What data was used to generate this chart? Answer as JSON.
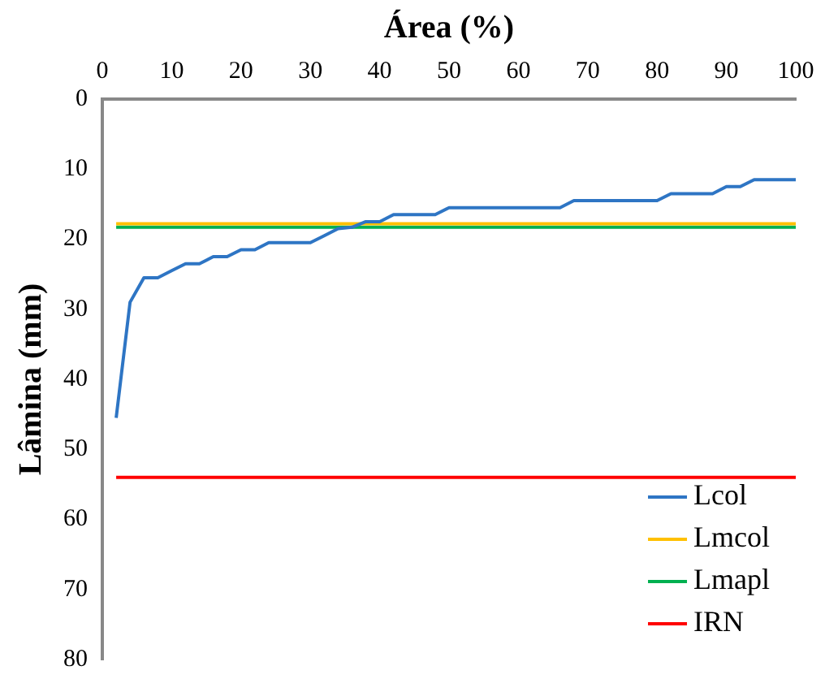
{
  "chart_data": {
    "type": "line",
    "xlabel": "Área (%)",
    "ylabel": "Lâmina (mm)",
    "xlim": [
      0,
      100
    ],
    "xticks": [
      0,
      10,
      20,
      30,
      40,
      50,
      60,
      70,
      80,
      90,
      100
    ],
    "ylim": [
      80,
      0
    ],
    "yticks": [
      0,
      10,
      20,
      30,
      40,
      50,
      60,
      70,
      80
    ],
    "grid": false,
    "legend": "bottom right",
    "marker": "none",
    "line_style": "solid",
    "series": [
      {
        "name": "Lcol",
        "color": "#2e75c4",
        "x": [
          2,
          4,
          6,
          8,
          10,
          12,
          14,
          16,
          18,
          20,
          22,
          24,
          26,
          28,
          30,
          32,
          34,
          36,
          38,
          40,
          42,
          44,
          46,
          48,
          50,
          52,
          66,
          68,
          80,
          82,
          88,
          90,
          92,
          94,
          100
        ],
        "values": [
          45.5,
          29,
          25.5,
          25.5,
          24.5,
          23.5,
          23.5,
          22.5,
          22.5,
          21.5,
          21.5,
          20.5,
          20.5,
          20.5,
          20.5,
          19.5,
          18.5,
          18.3,
          17.5,
          17.5,
          16.5,
          16.5,
          16.5,
          16.5,
          15.5,
          15.5,
          15.5,
          14.5,
          14.5,
          13.5,
          13.5,
          12.5,
          12.5,
          11.5,
          11.5
        ]
      },
      {
        "name": "Lmcol",
        "color": "#ffc000",
        "x": [
          2,
          100
        ],
        "values": [
          17.8,
          17.8
        ]
      },
      {
        "name": "Lmapl",
        "color": "#00b050",
        "x": [
          2,
          100
        ],
        "values": [
          18.3,
          18.3
        ]
      },
      {
        "name": "IRN",
        "color": "#ff0000",
        "x": [
          2,
          100
        ],
        "values": [
          54,
          54
        ]
      }
    ]
  }
}
